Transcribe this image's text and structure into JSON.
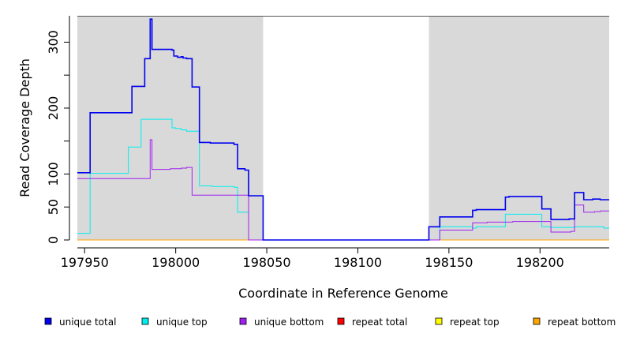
{
  "chart_data": {
    "type": "line",
    "xlabel": "Coordinate in Reference Genome",
    "ylabel": "Read Coverage Depth",
    "xlim": [
      197946,
      198238
    ],
    "ylim": [
      0,
      340
    ],
    "x_ticks": [
      197950,
      198000,
      198050,
      198100,
      198150,
      198200
    ],
    "y_ticks": [
      0,
      50,
      100,
      200,
      300
    ],
    "y_minor_ticks": [
      150,
      250
    ],
    "grid": false,
    "shaded_regions": [
      {
        "from": 197946,
        "to": 198048,
        "color": "#d9d9d9"
      },
      {
        "from": 198139,
        "to": 198238,
        "color": "#d9d9d9"
      }
    ],
    "legend_position": "bottom",
    "series": [
      {
        "name": "unique total",
        "color": "#0000ee",
        "points": [
          [
            197946,
            102
          ],
          [
            197953,
            102
          ],
          [
            197953,
            193
          ],
          [
            197976,
            193
          ],
          [
            197976,
            233
          ],
          [
            197983,
            233
          ],
          [
            197983,
            275
          ],
          [
            197986,
            275
          ],
          [
            197986,
            335
          ],
          [
            197987,
            335
          ],
          [
            197987,
            289
          ],
          [
            197998,
            289
          ],
          [
            197998,
            288
          ],
          [
            197999,
            288
          ],
          [
            197999,
            279
          ],
          [
            198001,
            279
          ],
          [
            198001,
            277
          ],
          [
            198003,
            277
          ],
          [
            198003,
            278
          ],
          [
            198004,
            278
          ],
          [
            198004,
            276
          ],
          [
            198006,
            276
          ],
          [
            198006,
            275
          ],
          [
            198009,
            275
          ],
          [
            198009,
            232
          ],
          [
            198013,
            232
          ],
          [
            198013,
            148
          ],
          [
            198019,
            148
          ],
          [
            198019,
            147
          ],
          [
            198032,
            147
          ],
          [
            198032,
            145
          ],
          [
            198034,
            145
          ],
          [
            198034,
            108
          ],
          [
            198038,
            108
          ],
          [
            198038,
            106
          ],
          [
            198040,
            106
          ],
          [
            198040,
            67
          ],
          [
            198048,
            67
          ],
          [
            198048,
            0
          ],
          [
            198139,
            0
          ],
          [
            198139,
            20
          ],
          [
            198145,
            20
          ],
          [
            198145,
            35
          ],
          [
            198163,
            35
          ],
          [
            198163,
            45
          ],
          [
            198165,
            45
          ],
          [
            198165,
            46
          ],
          [
            198181,
            46
          ],
          [
            198181,
            65
          ],
          [
            198183,
            65
          ],
          [
            198183,
            66
          ],
          [
            198201,
            66
          ],
          [
            198201,
            47
          ],
          [
            198206,
            47
          ],
          [
            198206,
            31
          ],
          [
            198216,
            31
          ],
          [
            198216,
            32
          ],
          [
            198219,
            32
          ],
          [
            198219,
            72
          ],
          [
            198224,
            72
          ],
          [
            198224,
            61
          ],
          [
            198229,
            61
          ],
          [
            198229,
            62
          ],
          [
            198233,
            62
          ],
          [
            198233,
            61
          ],
          [
            198238,
            61
          ]
        ]
      },
      {
        "name": "unique top",
        "color": "#00eeee",
        "points": [
          [
            197946,
            10
          ],
          [
            197953,
            10
          ],
          [
            197953,
            101
          ],
          [
            197974,
            101
          ],
          [
            197974,
            141
          ],
          [
            197981,
            141
          ],
          [
            197981,
            183
          ],
          [
            197998,
            183
          ],
          [
            197998,
            170
          ],
          [
            198000,
            170
          ],
          [
            198000,
            169
          ],
          [
            198003,
            169
          ],
          [
            198003,
            167
          ],
          [
            198006,
            167
          ],
          [
            198006,
            165
          ],
          [
            198013,
            165
          ],
          [
            198013,
            82
          ],
          [
            198020,
            82
          ],
          [
            198020,
            81
          ],
          [
            198032,
            81
          ],
          [
            198032,
            80
          ],
          [
            198034,
            80
          ],
          [
            198034,
            42
          ],
          [
            198040,
            42
          ],
          [
            198040,
            0
          ],
          [
            198139,
            0
          ],
          [
            198139,
            0
          ],
          [
            198145,
            0
          ],
          [
            198145,
            20
          ],
          [
            198163,
            20
          ],
          [
            198163,
            18
          ],
          [
            198165,
            18
          ],
          [
            198165,
            20
          ],
          [
            198181,
            20
          ],
          [
            198181,
            39
          ],
          [
            198201,
            39
          ],
          [
            198201,
            20
          ],
          [
            198206,
            20
          ],
          [
            198206,
            19
          ],
          [
            198219,
            19
          ],
          [
            198219,
            20
          ],
          [
            198235,
            20
          ],
          [
            198235,
            18
          ],
          [
            198238,
            18
          ]
        ]
      },
      {
        "name": "unique bottom",
        "color": "#a020f0",
        "points": [
          [
            197946,
            93
          ],
          [
            197986,
            93
          ],
          [
            197986,
            152
          ],
          [
            197987,
            152
          ],
          [
            197987,
            107
          ],
          [
            197997,
            107
          ],
          [
            197997,
            108
          ],
          [
            198003,
            108
          ],
          [
            198003,
            109
          ],
          [
            198006,
            109
          ],
          [
            198006,
            110
          ],
          [
            198009,
            110
          ],
          [
            198009,
            68
          ],
          [
            198040,
            68
          ],
          [
            198040,
            0
          ],
          [
            198145,
            0
          ],
          [
            198145,
            15
          ],
          [
            198163,
            15
          ],
          [
            198163,
            26
          ],
          [
            198171,
            26
          ],
          [
            198171,
            27
          ],
          [
            198185,
            27
          ],
          [
            198185,
            28
          ],
          [
            198206,
            28
          ],
          [
            198206,
            12
          ],
          [
            198217,
            12
          ],
          [
            198217,
            13
          ],
          [
            198219,
            13
          ],
          [
            198219,
            53
          ],
          [
            198224,
            53
          ],
          [
            198224,
            42
          ],
          [
            198230,
            42
          ],
          [
            198230,
            43
          ],
          [
            198233,
            43
          ],
          [
            198233,
            44
          ],
          [
            198238,
            44
          ]
        ]
      },
      {
        "name": "repeat total",
        "color": "#ff0000",
        "points": [
          [
            197946,
            0
          ],
          [
            198238,
            0
          ]
        ]
      },
      {
        "name": "repeat top",
        "color": "#ffff00",
        "points": [
          [
            197946,
            0
          ],
          [
            198238,
            0
          ]
        ]
      },
      {
        "name": "repeat bottom",
        "color": "#ffa500",
        "points": [
          [
            197946,
            0
          ],
          [
            198238,
            0
          ]
        ]
      }
    ]
  }
}
